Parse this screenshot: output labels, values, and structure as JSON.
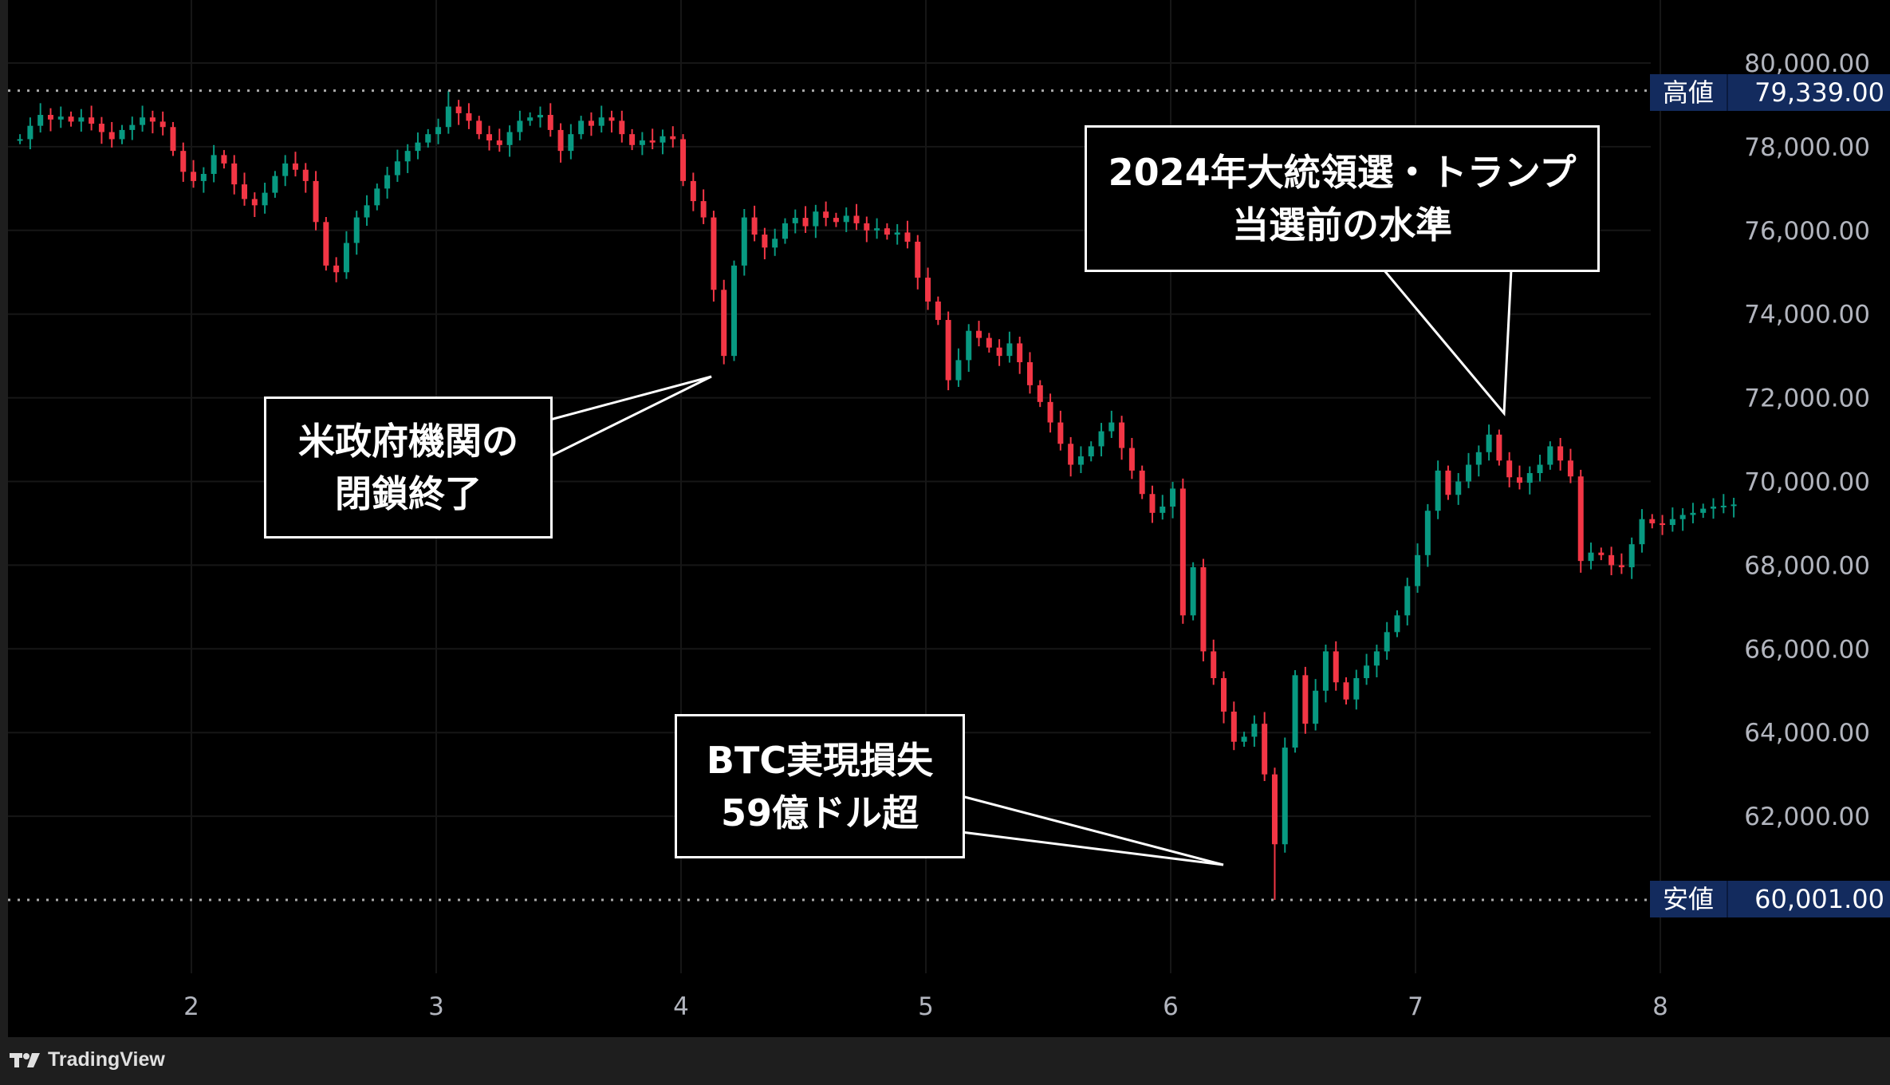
{
  "chart_data": {
    "type": "candlestick",
    "title": "",
    "xlabel": "",
    "ylabel": "",
    "interval": "1h",
    "x_ticks": [
      "2",
      "3",
      "4",
      "5",
      "6",
      "7",
      "8"
    ],
    "y_ticks": [
      "80,000.00",
      "78,000.00",
      "76,000.00",
      "74,000.00",
      "72,000.00",
      "70,000.00",
      "68,000.00",
      "66,000.00",
      "64,000.00",
      "62,000.00"
    ],
    "ylim": [
      58500,
      80700
    ],
    "grid": true,
    "first_candle_day": 1.3,
    "candles_per_day": 24,
    "closes": [
      78180,
      78500,
      78760,
      78650,
      78720,
      78600,
      78700,
      78550,
      78350,
      78180,
      78400,
      78520,
      78700,
      78600,
      78470,
      77900,
      77400,
      77180,
      77350,
      77800,
      77600,
      77100,
      76750,
      76600,
      76900,
      77300,
      77600,
      77450,
      77180,
      76200,
      75160,
      75000,
      75700,
      76310,
      76600,
      77000,
      77320,
      77650,
      77900,
      78100,
      78300,
      78470,
      78960,
      78800,
      78620,
      78300,
      78150,
      78040,
      78350,
      78620,
      78700,
      78760,
      78400,
      77900,
      78300,
      78620,
      78500,
      78700,
      78620,
      78300,
      78040,
      78150,
      78100,
      78250,
      78180,
      77180,
      76700,
      76310,
      74580,
      73000,
      75160,
      76310,
      75900,
      75590,
      75800,
      76170,
      76300,
      76100,
      76450,
      76300,
      76200,
      76350,
      76170,
      76000,
      76050,
      75900,
      75950,
      75730,
      74870,
      74300,
      73860,
      72420,
      72900,
      73600,
      73430,
      73200,
      73000,
      73300,
      72850,
      72300,
      71900,
      71410,
      70900,
      70400,
      70600,
      70840,
      71200,
      71410,
      70800,
      70260,
      69700,
      69250,
      69400,
      69830,
      66800,
      67950,
      65940,
      65300,
      64500,
      63780,
      63900,
      64210,
      63000,
      61330,
      63640,
      65370,
      64210,
      65000,
      65940,
      65200,
      64790,
      65300,
      65600,
      65940,
      66400,
      66800,
      67500,
      68240,
      69300,
      70260,
      69680,
      70000,
      70400,
      70700,
      71120,
      70500,
      70100,
      69970,
      70200,
      70400,
      70840,
      70500,
      70120,
      68100,
      68300,
      68240,
      68000,
      67950,
      68500,
      69100,
      69000,
      68960,
      69100,
      69200,
      69250,
      69350,
      69400,
      69420,
      69450
    ],
    "colors": {
      "up": "#089981",
      "down": "#f23645"
    },
    "high": {
      "label": "高値",
      "value": 79339,
      "text": "79,339.00"
    },
    "low": {
      "label": "安値",
      "value": 60001,
      "text": "60,001.00"
    },
    "annotations": [
      {
        "lines": [
          "米政府機関の",
          "閉鎖終了"
        ]
      },
      {
        "lines": [
          "2024年大統領選・トランプ",
          "当選前の水準"
        ]
      },
      {
        "lines": [
          "BTC実現損失",
          "59億ドル超"
        ]
      }
    ]
  },
  "footer": {
    "brand": "TradingView"
  }
}
